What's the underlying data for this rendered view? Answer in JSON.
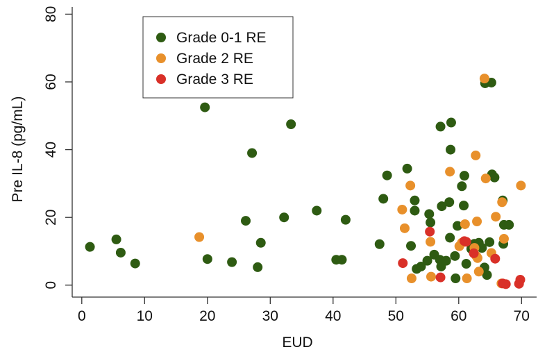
{
  "chart_data": {
    "type": "scatter",
    "title": "",
    "xlabel": "EUD",
    "ylabel": "Pre IL-8 (pg/mL)",
    "xlim": [
      0,
      73
    ],
    "ylim": [
      -3,
      80
    ],
    "xticks": [
      0,
      10,
      20,
      30,
      40,
      50,
      60,
      70
    ],
    "yticks": [
      0,
      20,
      40,
      60,
      80
    ],
    "grid": false,
    "legend_position": "top-left",
    "series": [
      {
        "name": "Grade 0-1 RE",
        "color": "#2e5b12",
        "points": [
          [
            1.3,
            11.3
          ],
          [
            5.5,
            13.5
          ],
          [
            6.2,
            9.6
          ],
          [
            8.5,
            6.4
          ],
          [
            19.6,
            52.5
          ],
          [
            20,
            7.7
          ],
          [
            23.9,
            6.8
          ],
          [
            26.1,
            19
          ],
          [
            27.1,
            39
          ],
          [
            28,
            5.3
          ],
          [
            28.5,
            12.5
          ],
          [
            32.2,
            20
          ],
          [
            33.3,
            47.5
          ],
          [
            37.4,
            22
          ],
          [
            40.5,
            7.5
          ],
          [
            41.4,
            7.5
          ],
          [
            42,
            19.3
          ],
          [
            47.4,
            12.1
          ],
          [
            48,
            25.5
          ],
          [
            48.6,
            32.4
          ],
          [
            51.8,
            34.4
          ],
          [
            52.4,
            11.6
          ],
          [
            53,
            25
          ],
          [
            53,
            22
          ],
          [
            53.3,
            4.8
          ],
          [
            54,
            5.5
          ],
          [
            55,
            7.2
          ],
          [
            55.3,
            21
          ],
          [
            55.5,
            18.5
          ],
          [
            56.1,
            9
          ],
          [
            57,
            7.5
          ],
          [
            57.1,
            46.8
          ],
          [
            57.2,
            5.5
          ],
          [
            57.3,
            23.3
          ],
          [
            58,
            7.2
          ],
          [
            58.5,
            24.5
          ],
          [
            58.6,
            14
          ],
          [
            58.7,
            40
          ],
          [
            58.8,
            48
          ],
          [
            59.4,
            8.6
          ],
          [
            59.5,
            2
          ],
          [
            59.8,
            17.5
          ],
          [
            60.5,
            29.2
          ],
          [
            60.8,
            23.5
          ],
          [
            60.9,
            32.3
          ],
          [
            61.2,
            6.3
          ],
          [
            62,
            10.7
          ],
          [
            62.5,
            12.2
          ],
          [
            63.2,
            12.5
          ],
          [
            63.7,
            11
          ],
          [
            64.1,
            5.2
          ],
          [
            64.2,
            59.6
          ],
          [
            64.5,
            3
          ],
          [
            64.9,
            12.7
          ],
          [
            65.2,
            59.8
          ],
          [
            65.3,
            32.7
          ],
          [
            65.7,
            31.8
          ],
          [
            67,
            25
          ],
          [
            67.1,
            12.2
          ],
          [
            67.2,
            17.8
          ],
          [
            68,
            17.8
          ]
        ]
      },
      {
        "name": "Grade 2 RE",
        "color": "#e8902b",
        "points": [
          [
            18.7,
            14.2
          ],
          [
            51,
            22.3
          ],
          [
            51.4,
            16.8
          ],
          [
            52.3,
            29.4
          ],
          [
            52.5,
            2
          ],
          [
            55.5,
            12.8
          ],
          [
            55.6,
            2.5
          ],
          [
            58.6,
            33.5
          ],
          [
            60.1,
            11.5
          ],
          [
            60.5,
            12.5
          ],
          [
            61,
            18
          ],
          [
            61.3,
            2
          ],
          [
            62.5,
            11
          ],
          [
            62.7,
            38.3
          ],
          [
            62.8,
            8.6
          ],
          [
            62.9,
            18.8
          ],
          [
            63,
            8
          ],
          [
            63.2,
            4
          ],
          [
            64.1,
            61
          ],
          [
            64.3,
            31.5
          ],
          [
            65.2,
            9.5
          ],
          [
            65.9,
            20.2
          ],
          [
            66.8,
            0.5
          ],
          [
            66.9,
            24.5
          ],
          [
            67.2,
            13.7
          ],
          [
            69.9,
            29.4
          ]
        ]
      },
      {
        "name": "Grade 3 RE",
        "color": "#d93028",
        "points": [
          [
            51.1,
            6.5
          ],
          [
            55.4,
            15.8
          ],
          [
            57.1,
            2.3
          ],
          [
            60.9,
            13
          ],
          [
            61.2,
            12.8
          ],
          [
            62.4,
            9.4
          ],
          [
            65.8,
            7.8
          ],
          [
            67,
            0.5
          ],
          [
            67.5,
            0.3
          ],
          [
            69.6,
            0.4
          ],
          [
            69.8,
            1.6
          ]
        ]
      }
    ]
  }
}
